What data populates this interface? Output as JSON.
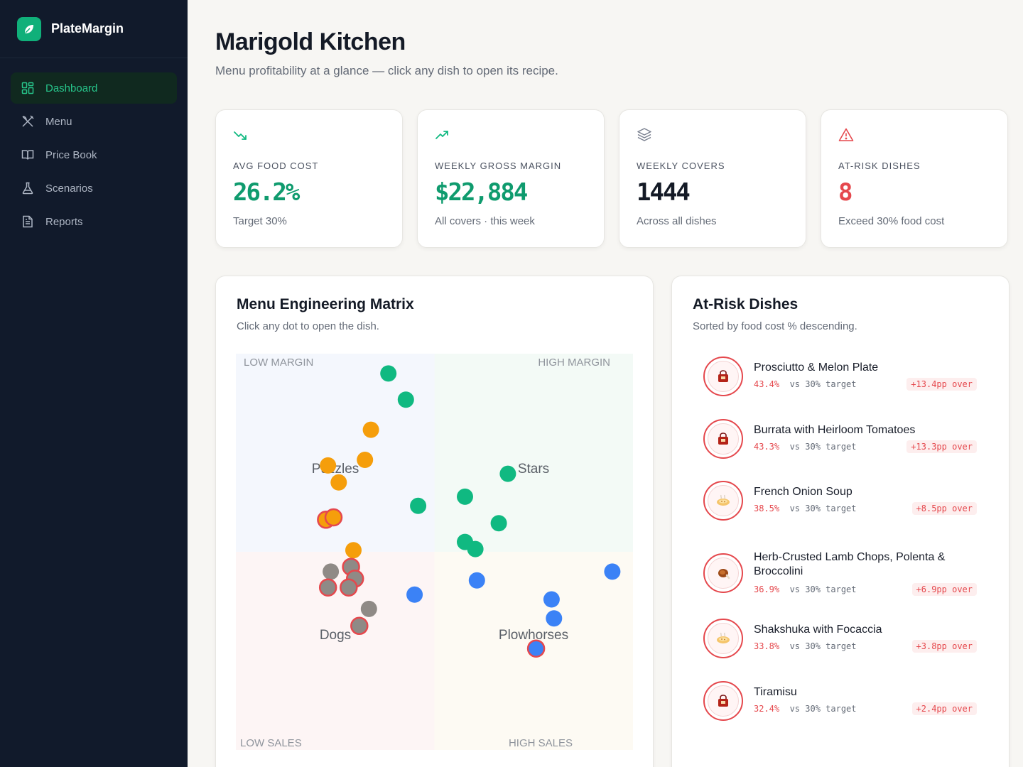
{
  "app": {
    "name": "PlateMargin"
  },
  "sidebar": {
    "items": [
      {
        "label": "Dashboard",
        "icon": "dashboard-grid-icon",
        "active": true
      },
      {
        "label": "Menu",
        "icon": "utensils-icon",
        "active": false
      },
      {
        "label": "Price Book",
        "icon": "book-icon",
        "active": false
      },
      {
        "label": "Scenarios",
        "icon": "flask-icon",
        "active": false
      },
      {
        "label": "Reports",
        "icon": "document-icon",
        "active": false
      }
    ]
  },
  "header": {
    "title": "Marigold Kitchen",
    "subtitle": "Menu profitability at a glance — click any dish to open its recipe."
  },
  "kpis": [
    {
      "icon": "trending-down-icon",
      "label": "AVG FOOD COST",
      "value": "26.2%",
      "note": "Target 30%",
      "color": "#0f9b6e"
    },
    {
      "icon": "trending-up-icon",
      "label": "WEEKLY GROSS MARGIN",
      "value": "$22,884",
      "note": "All covers · this week",
      "color": "#0f9b6e"
    },
    {
      "icon": "layers-icon",
      "label": "WEEKLY COVERS",
      "value": "1444",
      "note": "Across all dishes",
      "color": "#141a26"
    },
    {
      "icon": "warning-triangle-icon",
      "label": "AT-RISK DISHES",
      "value": "8",
      "note": "Exceed 30% food cost",
      "color": "#e5484d"
    }
  ],
  "matrix": {
    "title": "Menu Engineering Matrix",
    "subtitle": "Click any dot to open the dish.",
    "corner_labels": {
      "top_left": "LOW MARGIN",
      "top_right": "HIGH MARGIN",
      "bottom_left": "LOW SALES",
      "bottom_right": "HIGH SALES"
    },
    "quadrants": {
      "puzzles": "Puzzles",
      "stars": "Stars",
      "dogs": "Dogs",
      "plowhorses": "Plowhorses"
    },
    "colors": {
      "stars": "#10b981",
      "puzzles": "#f59e0b",
      "dogs": "#8f8a86",
      "plowhorses": "#3b82f6",
      "at_risk_ring": "#e5484d"
    },
    "chart_data": {
      "type": "scatter",
      "xlim": [
        0,
        1
      ],
      "ylim": [
        0,
        1
      ],
      "series": [
        {
          "name": "Stars",
          "points": [
            [
              0.384,
              0.95
            ],
            [
              0.428,
              0.884
            ],
            [
              0.685,
              0.697
            ],
            [
              0.459,
              0.616
            ],
            [
              0.577,
              0.639
            ],
            [
              0.662,
              0.572
            ],
            [
              0.577,
              0.525
            ],
            [
              0.603,
              0.507
            ]
          ],
          "risk": [
            false,
            false,
            false,
            false,
            false,
            false,
            false,
            false
          ]
        },
        {
          "name": "Puzzles",
          "points": [
            [
              0.34,
              0.808
            ],
            [
              0.325,
              0.732
            ],
            [
              0.232,
              0.718
            ],
            [
              0.259,
              0.675
            ],
            [
              0.227,
              0.581
            ],
            [
              0.246,
              0.587
            ],
            [
              0.296,
              0.504
            ]
          ],
          "risk": [
            false,
            false,
            false,
            false,
            true,
            true,
            false
          ]
        },
        {
          "name": "Dogs",
          "points": [
            [
              0.239,
              0.45
            ],
            [
              0.29,
              0.462
            ],
            [
              0.3,
              0.432
            ],
            [
              0.232,
              0.41
            ],
            [
              0.284,
              0.41
            ],
            [
              0.335,
              0.356
            ],
            [
              0.311,
              0.313
            ]
          ],
          "risk": [
            false,
            true,
            true,
            true,
            true,
            false,
            true
          ]
        },
        {
          "name": "Plowhorses",
          "points": [
            [
              0.45,
              0.392
            ],
            [
              0.607,
              0.428
            ],
            [
              0.948,
              0.45
            ],
            [
              0.795,
              0.38
            ],
            [
              0.801,
              0.332
            ],
            [
              0.756,
              0.256
            ]
          ],
          "risk": [
            false,
            false,
            false,
            false,
            false,
            true
          ]
        }
      ]
    }
  },
  "at_risk": {
    "title": "At-Risk Dishes",
    "subtitle": "Sorted by food cost % descending.",
    "vs_text": "vs 30% target",
    "items": [
      {
        "name": "Prosciutto & Melon Plate",
        "pct": "43.4%",
        "badge": "+13.4pp over",
        "icon": "bag-icon"
      },
      {
        "name": "Burrata with Heirloom Tomatoes",
        "pct": "43.3%",
        "badge": "+13.3pp over",
        "icon": "bag-icon"
      },
      {
        "name": "French Onion Soup",
        "pct": "38.5%",
        "badge": "+8.5pp over",
        "icon": "bowl-icon"
      },
      {
        "name": "Herb-Crusted Lamb Chops, Polenta & Broccolini",
        "pct": "36.9%",
        "badge": "+6.9pp over",
        "icon": "meat-icon"
      },
      {
        "name": "Shakshuka with Focaccia",
        "pct": "33.8%",
        "badge": "+3.8pp over",
        "icon": "bowl-icon"
      },
      {
        "name": "Tiramisu",
        "pct": "32.4%",
        "badge": "+2.4pp over",
        "icon": "bag-icon"
      }
    ]
  }
}
